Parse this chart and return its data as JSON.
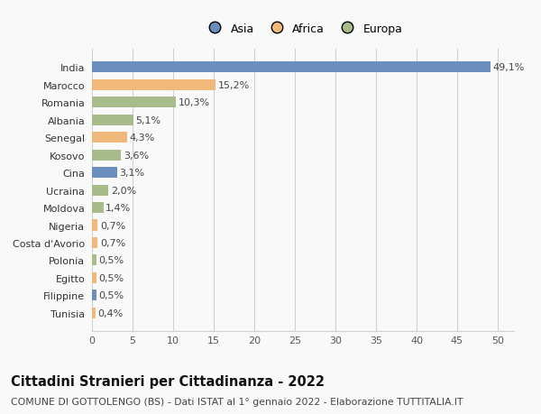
{
  "countries": [
    "India",
    "Marocco",
    "Romania",
    "Albania",
    "Senegal",
    "Kosovo",
    "Cina",
    "Ucraina",
    "Moldova",
    "Nigeria",
    "Costa d'Avorio",
    "Polonia",
    "Egitto",
    "Filippine",
    "Tunisia"
  ],
  "values": [
    49.1,
    15.2,
    10.3,
    5.1,
    4.3,
    3.6,
    3.1,
    2.0,
    1.4,
    0.7,
    0.7,
    0.5,
    0.5,
    0.5,
    0.4
  ],
  "labels": [
    "49,1%",
    "15,2%",
    "10,3%",
    "5,1%",
    "4,3%",
    "3,6%",
    "3,1%",
    "2,0%",
    "1,4%",
    "0,7%",
    "0,7%",
    "0,5%",
    "0,5%",
    "0,5%",
    "0,4%"
  ],
  "colors": [
    "#6c8ebf",
    "#f0b97a",
    "#a8bb8a",
    "#a8bb8a",
    "#f0b97a",
    "#a8bb8a",
    "#6c8ebf",
    "#a8bb8a",
    "#a8bb8a",
    "#f0b97a",
    "#f0b97a",
    "#a8bb8a",
    "#f0b97a",
    "#6c8ebf",
    "#f0b97a"
  ],
  "legend_labels": [
    "Asia",
    "Africa",
    "Europa"
  ],
  "legend_colors": [
    "#6c8ebf",
    "#f0b97a",
    "#a8bb8a"
  ],
  "xlim": [
    0,
    52
  ],
  "xticks": [
    0,
    5,
    10,
    15,
    20,
    25,
    30,
    35,
    40,
    45,
    50
  ],
  "title": "Cittadini Stranieri per Cittadinanza - 2022",
  "subtitle": "COMUNE DI GOTTOLENGO (BS) - Dati ISTAT al 1° gennaio 2022 - Elaborazione TUTTITALIA.IT",
  "bg_color": "#f9f9f9",
  "grid_color": "#d0d0d0",
  "bar_height": 0.62,
  "label_fontsize": 8.0,
  "tick_fontsize": 8.0,
  "title_fontsize": 10.5,
  "subtitle_fontsize": 7.8
}
